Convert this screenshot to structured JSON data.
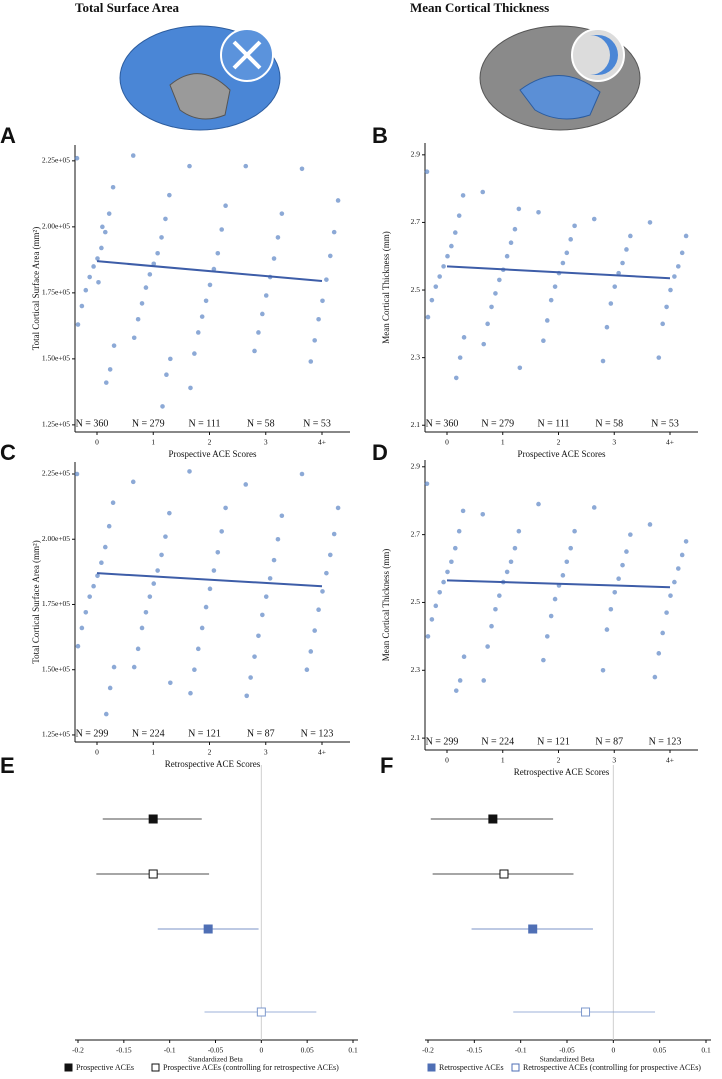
{
  "column_titles": [
    "Total Surface Area",
    "Mean Cortical Thickness"
  ],
  "chart_data": [
    {
      "type": "strip",
      "panel": "A",
      "categories": [
        "0",
        "1",
        "2",
        "3",
        "4+"
      ],
      "n_labels": [
        "N = 360",
        "N = 279",
        "N = 111",
        "N = 58",
        "N = 53"
      ],
      "xlabel": "Prospective ACE Scores",
      "ylabel": "Total Cortical Surface Area (mm²)",
      "color": "#5b84c4",
      "line_color": "#3d5da8",
      "ylim": [
        122300,
        231000
      ],
      "yticks": [
        {
          "value": 125000,
          "label": "1.25e+05"
        },
        {
          "value": 150000,
          "label": "1.50e+05"
        },
        {
          "value": 175000,
          "label": "1.75e+05"
        },
        {
          "value": 200000,
          "label": "2.00e+05"
        },
        {
          "value": 225000,
          "label": "2.25e+05"
        }
      ],
      "trend": [
        187000,
        179500
      ],
      "points": [
        [
          226000,
          215000,
          205000,
          198000,
          192000,
          188000,
          185000,
          181000,
          176000,
          170000,
          163000,
          155000,
          146000,
          141000,
          200000,
          179000
        ],
        [
          227000,
          212000,
          203000,
          196000,
          190000,
          186000,
          182000,
          177000,
          171000,
          165000,
          158000,
          150000,
          144000,
          132000
        ],
        [
          223000,
          208000,
          199000,
          190000,
          184000,
          178000,
          172000,
          166000,
          160000,
          152000,
          139000
        ],
        [
          223000,
          205000,
          196000,
          188000,
          181000,
          174000,
          167000,
          160000,
          153000
        ],
        [
          222000,
          210000,
          198000,
          189000,
          180000,
          172000,
          165000,
          157000,
          149000
        ]
      ]
    },
    {
      "type": "strip",
      "panel": "B",
      "categories": [
        "0",
        "1",
        "2",
        "3",
        "4+"
      ],
      "n_labels": [
        "N = 360",
        "N = 279",
        "N = 111",
        "N = 58",
        "N = 53"
      ],
      "xlabel": "Prospective ACE Scores",
      "ylabel": "Mean Cortical Thickness (mm)",
      "color": "#5b84c4",
      "line_color": "#3d5da8",
      "ylim": [
        2.08,
        2.935
      ],
      "yticks": [
        2.1,
        2.3,
        2.5,
        2.7,
        2.9
      ],
      "trend": [
        2.57,
        2.535
      ],
      "points": [
        [
          2.85,
          2.78,
          2.72,
          2.67,
          2.63,
          2.6,
          2.57,
          2.54,
          2.51,
          2.47,
          2.42,
          2.36,
          2.3,
          2.24
        ],
        [
          2.79,
          2.74,
          2.68,
          2.64,
          2.6,
          2.56,
          2.53,
          2.49,
          2.45,
          2.4,
          2.34,
          2.27
        ],
        [
          2.73,
          2.69,
          2.65,
          2.61,
          2.58,
          2.55,
          2.51,
          2.47,
          2.41,
          2.35
        ],
        [
          2.71,
          2.66,
          2.62,
          2.58,
          2.55,
          2.51,
          2.46,
          2.39,
          2.29
        ],
        [
          2.7,
          2.66,
          2.61,
          2.57,
          2.54,
          2.5,
          2.45,
          2.4,
          2.3
        ]
      ]
    },
    {
      "type": "strip",
      "panel": "C",
      "categories": [
        "0",
        "1",
        "2",
        "3",
        "4+"
      ],
      "n_labels": [
        "N = 299",
        "N = 224",
        "N = 121",
        "N = 87",
        "N = 123"
      ],
      "xlabel": "Retrospective ACE Scores",
      "ylabel": "Total Cortical Surface Area (mm²)",
      "color": "#5b84c4",
      "line_color": "#3d5da8",
      "ylim": [
        122300,
        229600
      ],
      "yticks": [
        {
          "value": 125000,
          "label": "1.25e+05"
        },
        {
          "value": 150000,
          "label": "1.50e+05"
        },
        {
          "value": 175000,
          "label": "1.75e+05"
        },
        {
          "value": 200000,
          "label": "2.00e+05"
        },
        {
          "value": 225000,
          "label": "2.25e+05"
        }
      ],
      "trend": [
        187000,
        182000
      ],
      "points": [
        [
          225000,
          214000,
          205000,
          197000,
          191000,
          186000,
          182000,
          178000,
          172000,
          166000,
          159000,
          151000,
          143000,
          133000
        ],
        [
          222000,
          210000,
          201000,
          194000,
          188000,
          183000,
          178000,
          172000,
          166000,
          158000,
          151000,
          145000
        ],
        [
          226000,
          212000,
          203000,
          195000,
          188000,
          181000,
          174000,
          166000,
          158000,
          150000,
          141000
        ],
        [
          221000,
          209000,
          200000,
          192000,
          185000,
          178000,
          171000,
          163000,
          155000,
          147000,
          140000
        ],
        [
          225000,
          212000,
          202000,
          194000,
          187000,
          180000,
          173000,
          165000,
          157000,
          150000
        ]
      ]
    },
    {
      "type": "strip",
      "panel": "D",
      "categories": [
        "0",
        "1",
        "2",
        "3",
        "4+"
      ],
      "n_labels": [
        "N = 299",
        "N = 224",
        "N = 121",
        "N = 87",
        "N = 123"
      ],
      "xlabel": "Retrospective ACE Scores",
      "ylabel": "Mean Cortical Thickness (mm)",
      "color": "#5b84c4",
      "line_color": "#3d5da8",
      "ylim": [
        2.065,
        2.92
      ],
      "yticks": [
        2.1,
        2.3,
        2.5,
        2.7,
        2.9
      ],
      "trend": [
        2.565,
        2.545
      ],
      "points": [
        [
          2.85,
          2.77,
          2.71,
          2.66,
          2.62,
          2.59,
          2.56,
          2.53,
          2.49,
          2.45,
          2.4,
          2.34,
          2.27,
          2.24
        ],
        [
          2.76,
          2.71,
          2.66,
          2.62,
          2.59,
          2.56,
          2.52,
          2.48,
          2.43,
          2.37,
          2.27
        ],
        [
          2.79,
          2.71,
          2.66,
          2.62,
          2.58,
          2.55,
          2.51,
          2.46,
          2.4,
          2.33
        ],
        [
          2.78,
          2.7,
          2.65,
          2.61,
          2.57,
          2.53,
          2.48,
          2.42,
          2.3
        ],
        [
          2.73,
          2.68,
          2.64,
          2.6,
          2.56,
          2.52,
          2.47,
          2.41,
          2.35,
          2.28
        ]
      ]
    },
    {
      "type": "forest",
      "panel": "E",
      "xlabel": "Standardized Beta",
      "xlim": [
        -0.2,
        0.1
      ],
      "xticks": [
        -0.2,
        -0.15,
        -0.1,
        -0.05,
        0,
        0.05,
        0.1
      ],
      "series": [
        {
          "color": "#111111",
          "filled": true,
          "estimate": -0.118,
          "lower": -0.173,
          "upper": -0.065
        },
        {
          "color": "#111111",
          "filled": false,
          "estimate": -0.118,
          "lower": -0.18,
          "upper": -0.057
        },
        {
          "color": "#4f6fb5",
          "filled": true,
          "estimate": -0.058,
          "lower": -0.113,
          "upper": -0.003
        },
        {
          "color": "#7d98cc",
          "filled": false,
          "estimate": 0,
          "lower": -0.062,
          "upper": 0.06
        }
      ],
      "legend": [
        {
          "name": "Prospective ACEs",
          "color": "#111111",
          "filled": true
        },
        {
          "name": "Prospective ACEs (controlling for retrospective ACEs)",
          "color": "#111111",
          "filled": false
        }
      ]
    },
    {
      "type": "forest",
      "panel": "F",
      "xlabel": "Standardized Beta",
      "xlim": [
        -0.2,
        0.1
      ],
      "xticks": [
        -0.2,
        -0.15,
        -0.1,
        -0.05,
        0,
        0.05,
        0.1
      ],
      "series": [
        {
          "color": "#111111",
          "filled": true,
          "estimate": -0.13,
          "lower": -0.197,
          "upper": -0.065
        },
        {
          "color": "#111111",
          "filled": false,
          "estimate": -0.118,
          "lower": -0.195,
          "upper": -0.043
        },
        {
          "color": "#4f6fb5",
          "filled": true,
          "estimate": -0.087,
          "lower": -0.153,
          "upper": -0.022
        },
        {
          "color": "#7d98cc",
          "filled": false,
          "estimate": -0.03,
          "lower": -0.108,
          "upper": 0.045
        }
      ],
      "legend": [
        {
          "name": "Retrospective ACEs",
          "color": "#4f6fb5",
          "filled": true
        },
        {
          "name": "Retrospective ACEs (controlling for prospective ACEs)",
          "color": "#4f6fb5",
          "filled": false
        }
      ]
    }
  ]
}
